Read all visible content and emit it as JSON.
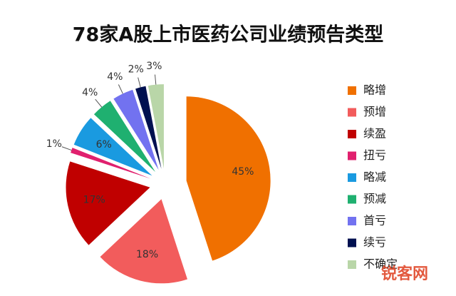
{
  "chart_data": {
    "type": "pie",
    "title": "78家A股上市医药公司业绩预告类型",
    "categories": [
      "略增",
      "预增",
      "续盈",
      "扭亏",
      "略减",
      "预减",
      "首亏",
      "续亏",
      "不确定"
    ],
    "values": [
      45,
      18,
      17,
      1,
      6,
      4,
      4,
      2,
      3
    ],
    "value_labels": [
      "45%",
      "18%",
      "17%",
      "1%",
      "6%",
      "4%",
      "4%",
      "2%",
      "3%"
    ],
    "colors": [
      "#f07000",
      "#f25c5c",
      "#c00000",
      "#e0206e",
      "#1a9ae0",
      "#1fb070",
      "#7272f0",
      "#001050",
      "#b9d6a8"
    ],
    "legend": "right",
    "watermark": "锐客网"
  }
}
